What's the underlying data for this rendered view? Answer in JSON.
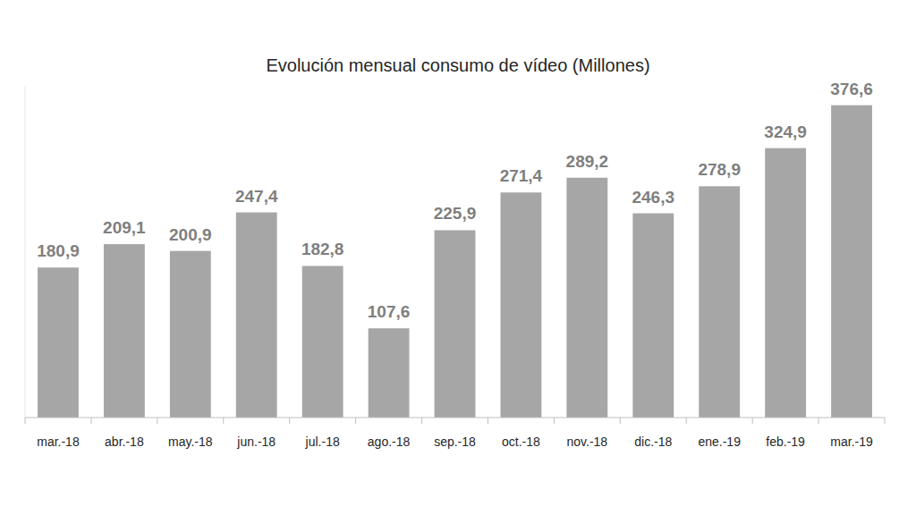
{
  "chart_data": {
    "type": "bar",
    "title": "Evolución mensual consumo de vídeo (Millones)",
    "categories": [
      "mar.-18",
      "abr.-18",
      "may.-18",
      "jun.-18",
      "jul.-18",
      "ago.-18",
      "sep.-18",
      "oct.-18",
      "nov.-18",
      "dic.-18",
      "ene.-19",
      "feb.-19",
      "mar.-19"
    ],
    "values": [
      180.9,
      209.1,
      200.9,
      247.4,
      182.8,
      107.6,
      225.9,
      271.4,
      289.2,
      246.3,
      278.9,
      324.9,
      376.6
    ],
    "value_labels": [
      "180,9",
      "209,1",
      "200,9",
      "247,4",
      "182,8",
      "107,6",
      "225,9",
      "271,4",
      "289,2",
      "246,3",
      "278,9",
      "324,9",
      "376,6"
    ],
    "color": "#a6a6a6",
    "ylim": [
      0,
      400
    ],
    "yticks": [],
    "grid": false,
    "data_labels": true,
    "tick_labels": "x"
  }
}
